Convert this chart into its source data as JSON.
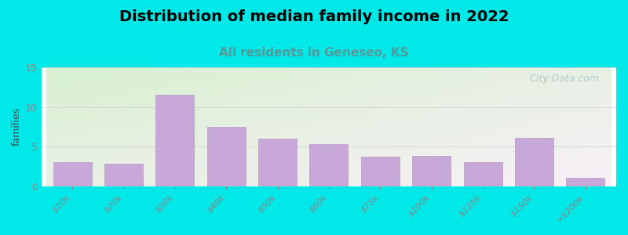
{
  "title": "Distribution of median family income in 2022",
  "subtitle": "All residents in Geneseo, KS",
  "categories": [
    "$10k",
    "$20k",
    "$30k",
    "$40k",
    "$50k",
    "$60k",
    "$75k",
    "$100k",
    "$125k",
    "$150k",
    ">$200k"
  ],
  "values": [
    3,
    2.8,
    11.5,
    7.5,
    6,
    5.3,
    3.7,
    3.8,
    3,
    6.1,
    1
  ],
  "bar_color": "#c8a8d8",
  "bar_edge_color": "#b898c8",
  "background_color": "#00e8e8",
  "grad_top_left": "#d8f0d0",
  "grad_bottom_right": "#f8f0f8",
  "title_fontsize": 14,
  "subtitle_fontsize": 11,
  "subtitle_color": "#559999",
  "ylabel": "families",
  "ylabel_fontsize": 9,
  "ylim": [
    0,
    15
  ],
  "yticks": [
    0,
    5,
    10,
    15
  ],
  "watermark": "City-Data.com",
  "watermark_color": "#b0c8c8",
  "tick_color": "#888888",
  "tick_fontsize": 8
}
